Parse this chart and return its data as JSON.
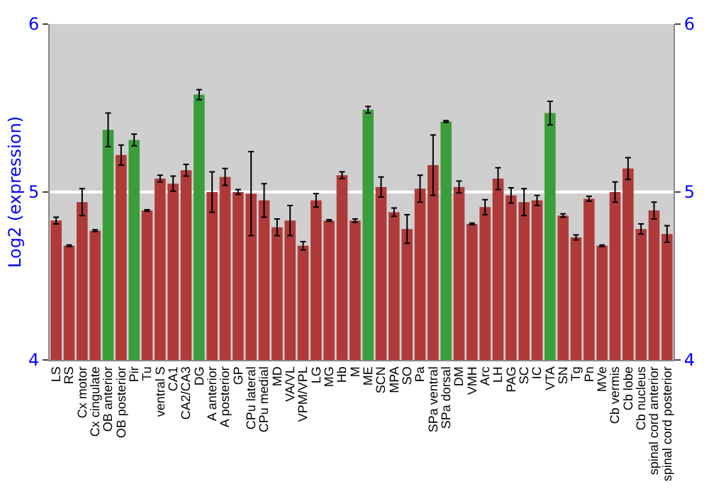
{
  "chart_data": {
    "type": "bar",
    "ylabel": "Log2 (expression)",
    "categories": [
      "LS",
      "RS",
      "Cx motor",
      "Cx cingulate",
      "OB anterior",
      "OB posterior",
      "Pir",
      "Tu",
      "ventral S",
      "CA1",
      "CA2/CA3",
      "DG",
      "A anterior",
      "A posterior",
      "GP",
      "CPu lateral",
      "CPu medial",
      "MD",
      "VA/VL",
      "VPM/VPL",
      "LG",
      "MG",
      "Hb",
      "M",
      "ME",
      "SCN",
      "MPA",
      "SO",
      "Pa",
      "SPa ventral",
      "SPa dorsal",
      "DM",
      "VMH",
      "Arc",
      "LH",
      "PAG",
      "SC",
      "IC",
      "VTA",
      "SN",
      "Tg",
      "Pn",
      "MVe",
      "Cb vermis",
      "Cb lobe",
      "Cb nucleus",
      "spinal cord anterior",
      "spinal cord posterior"
    ],
    "values": [
      4.83,
      4.68,
      4.94,
      4.77,
      5.37,
      5.22,
      5.31,
      4.89,
      5.08,
      5.05,
      5.13,
      5.58,
      5.0,
      5.09,
      5.0,
      4.99,
      4.95,
      4.79,
      4.83,
      4.68,
      4.95,
      4.83,
      5.1,
      4.83,
      5.49,
      5.03,
      4.88,
      4.78,
      5.02,
      5.16,
      5.42,
      5.03,
      4.81,
      4.91,
      5.08,
      4.98,
      4.94,
      4.95,
      5.47,
      4.86,
      4.73,
      4.96,
      4.68,
      5.0,
      5.14,
      4.78,
      4.89,
      4.75
    ],
    "errors": [
      0.02,
      0.005,
      0.08,
      0.005,
      0.1,
      0.06,
      0.035,
      0.005,
      0.02,
      0.045,
      0.035,
      0.03,
      0.12,
      0.05,
      0.015,
      0.25,
      0.1,
      0.05,
      0.09,
      0.025,
      0.04,
      0.005,
      0.02,
      0.01,
      0.02,
      0.06,
      0.025,
      0.085,
      0.08,
      0.18,
      0.005,
      0.035,
      0.005,
      0.045,
      0.065,
      0.045,
      0.08,
      0.03,
      0.07,
      0.01,
      0.015,
      0.015,
      0.005,
      0.06,
      0.065,
      0.03,
      0.05,
      0.05
    ],
    "colors": [
      "#b03a3a",
      "#b03a3a",
      "#b03a3a",
      "#b03a3a",
      "#3a9e3a",
      "#b03a3a",
      "#3a9e3a",
      "#b03a3a",
      "#b03a3a",
      "#b03a3a",
      "#b03a3a",
      "#3a9e3a",
      "#b03a3a",
      "#b03a3a",
      "#b03a3a",
      "#b03a3a",
      "#b03a3a",
      "#b03a3a",
      "#b03a3a",
      "#b03a3a",
      "#b03a3a",
      "#b03a3a",
      "#b03a3a",
      "#b03a3a",
      "#3a9e3a",
      "#b03a3a",
      "#b03a3a",
      "#b03a3a",
      "#b03a3a",
      "#b03a3a",
      "#3a9e3a",
      "#b03a3a",
      "#b03a3a",
      "#b03a3a",
      "#b03a3a",
      "#b03a3a",
      "#b03a3a",
      "#b03a3a",
      "#3a9e3a",
      "#b03a3a",
      "#b03a3a",
      "#b03a3a",
      "#b03a3a",
      "#b03a3a",
      "#b03a3a",
      "#b03a3a",
      "#b03a3a",
      "#b03a3a"
    ],
    "ylim": [
      4,
      6
    ],
    "yticks": [
      4,
      5,
      6
    ],
    "y2lim": [
      4,
      6
    ],
    "y2ticks": [
      4,
      5,
      6
    ],
    "grid": "y"
  }
}
